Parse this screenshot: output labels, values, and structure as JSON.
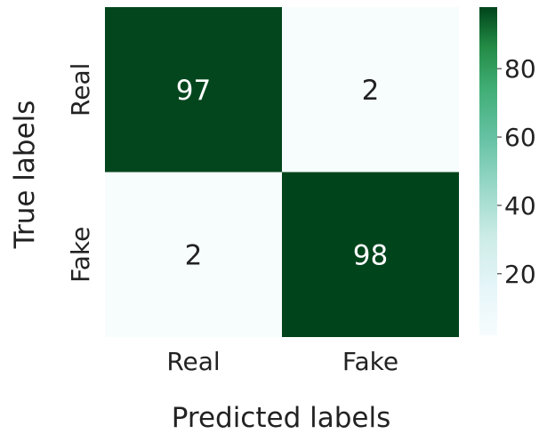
{
  "chart_data": {
    "type": "heatmap",
    "title": "",
    "xlabel": "Predicted labels",
    "ylabel": "True labels",
    "x_categories": [
      "Real",
      "Fake"
    ],
    "y_categories": [
      "Real",
      "Fake"
    ],
    "values": [
      [
        97,
        2
      ],
      [
        2,
        98
      ]
    ],
    "annotations": [
      "97",
      "2",
      "2",
      "98"
    ],
    "colormap": "Greens",
    "colorbar": {
      "range": [
        2,
        98
      ],
      "ticks": [
        20,
        40,
        60,
        80
      ],
      "tick_labels": [
        "20",
        "40",
        "60",
        "80"
      ]
    },
    "colors": {
      "low": "#f7fcfd",
      "high": "#00441b",
      "annotation_text": "#ffffff",
      "annotation_text_dark": "#222222"
    }
  }
}
